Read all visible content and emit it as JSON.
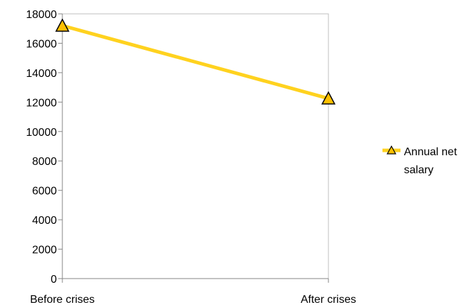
{
  "chart_data": {
    "type": "line",
    "categories": [
      "Before crises",
      "After crises"
    ],
    "series": [
      {
        "name": "Annual net salary",
        "values": [
          17200,
          12250
        ],
        "color": "#FFD21F",
        "marker": "triangle",
        "marker_fill": "#FFC000"
      }
    ],
    "ylim": [
      0,
      18000
    ],
    "yticks": [
      0,
      2000,
      4000,
      6000,
      8000,
      10000,
      12000,
      14000,
      16000,
      18000
    ],
    "grid": false,
    "legend": "right",
    "legend_lines": [
      "Annual net",
      "salary"
    ]
  }
}
